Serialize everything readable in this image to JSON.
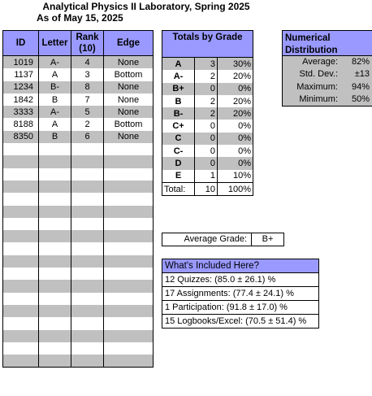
{
  "title_line1": "Analytical Physics II Laboratory, Spring 2025",
  "title_line2": "As of  May 15, 2025",
  "grade_table": {
    "headers": [
      "ID",
      "Letter",
      "Rank (10)",
      "Edge"
    ],
    "header_rank_line1": "Rank",
    "header_rank_line2": "(10)",
    "rows": [
      {
        "id": "1019",
        "letter": "A-",
        "rank": "4",
        "edge": "None"
      },
      {
        "id": "1137",
        "letter": "A",
        "rank": "3",
        "edge": "Bottom"
      },
      {
        "id": "1234",
        "letter": "B-",
        "rank": "8",
        "edge": "None"
      },
      {
        "id": "1842",
        "letter": "B",
        "rank": "7",
        "edge": "None"
      },
      {
        "id": "3333",
        "letter": "A-",
        "rank": "5",
        "edge": "None"
      },
      {
        "id": "8188",
        "letter": "A",
        "rank": "2",
        "edge": "Bottom"
      },
      {
        "id": "8350",
        "letter": "B",
        "rank": "6",
        "edge": "None"
      }
    ],
    "empty_rows": 18
  },
  "totals": {
    "header": "Totals by Grade",
    "rows": [
      {
        "grade": "A",
        "count": "3",
        "percent": "30%"
      },
      {
        "grade": "A-",
        "count": "2",
        "percent": "20%"
      },
      {
        "grade": "B+",
        "count": "0",
        "percent": "0%"
      },
      {
        "grade": "B",
        "count": "2",
        "percent": "20%"
      },
      {
        "grade": "B-",
        "count": "2",
        "percent": "20%"
      },
      {
        "grade": "C+",
        "count": "0",
        "percent": "0%"
      },
      {
        "grade": "C",
        "count": "0",
        "percent": "0%"
      },
      {
        "grade": "C-",
        "count": "0",
        "percent": "0%"
      },
      {
        "grade": "D",
        "count": "0",
        "percent": "0%"
      },
      {
        "grade": "E",
        "count": "1",
        "percent": "10%"
      }
    ],
    "total": {
      "label": "Total:",
      "count": "10",
      "percent": "100%"
    }
  },
  "distribution": {
    "header": "Numerical Distribution",
    "rows": [
      {
        "label": "Average:",
        "value": "82%"
      },
      {
        "label": "Std. Dev.:",
        "value": "±13"
      },
      {
        "label": "Maximum:",
        "value": "94%"
      },
      {
        "label": "Minimum:",
        "value": "50%"
      }
    ]
  },
  "average_grade": {
    "label": "Average Grade:",
    "value": "B+"
  },
  "included": {
    "header": "What's Included Here?",
    "items": [
      "12 Quizzes: (85.0 ± 26.1) %",
      "17 Assignments: (77.4 ± 24.1) %",
      "1 Participation: (91.8 ± 17.0) %",
      "15 Logbooks/Excel: (70.5 ± 51.4) %"
    ]
  }
}
